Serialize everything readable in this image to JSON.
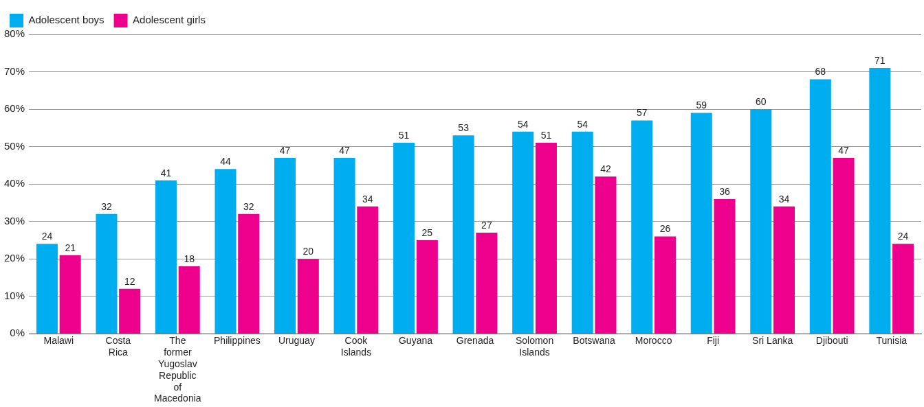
{
  "chart_data": {
    "type": "bar",
    "categories": [
      "Malawi",
      "Costa Rica",
      "The former Yugoslav Republic of Macedonia",
      "Philippines",
      "Uruguay",
      "Cook Islands",
      "Guyana",
      "Grenada",
      "Solomon Islands",
      "Botswana",
      "Morocco",
      "Fiji",
      "Sri Lanka",
      "Djibouti",
      "Tunisia"
    ],
    "series": [
      {
        "name": "Adolescent boys",
        "color": "#00aeef",
        "values": [
          24,
          32,
          41,
          44,
          47,
          47,
          51,
          53,
          54,
          54,
          57,
          59,
          60,
          68,
          71
        ]
      },
      {
        "name": "Adolescent girls",
        "color": "#ec008c",
        "values": [
          21,
          12,
          18,
          32,
          20,
          34,
          25,
          27,
          51,
          42,
          26,
          36,
          34,
          47,
          24
        ]
      }
    ],
    "ylim": [
      0,
      80
    ],
    "yticks": [
      {
        "value": 0,
        "label": "0%"
      },
      {
        "value": 10,
        "label": "10%"
      },
      {
        "value": 20,
        "label": "20%"
      },
      {
        "value": 30,
        "label": "30%"
      },
      {
        "value": 40,
        "label": "40%"
      },
      {
        "value": 50,
        "label": "50%"
      },
      {
        "value": 60,
        "label": "60%"
      },
      {
        "value": 70,
        "label": "70%"
      },
      {
        "value": 80,
        "label": "80%"
      }
    ],
    "grid": "y",
    "legend": "top left",
    "data_labels": true
  }
}
